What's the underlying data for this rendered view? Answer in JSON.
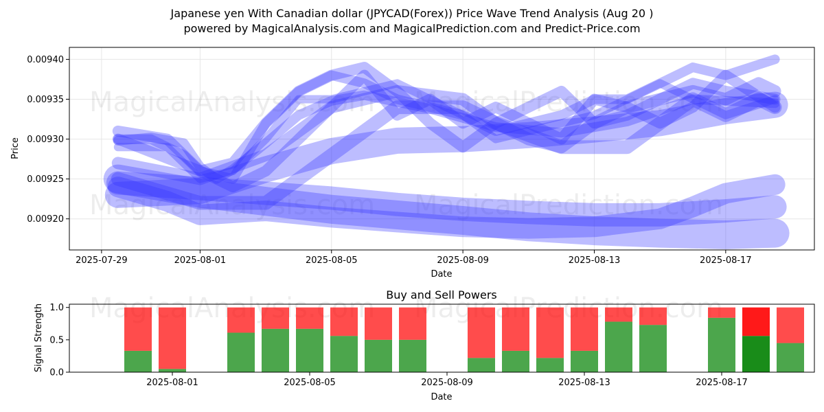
{
  "title": {
    "line1": "Japanese yen With Canadian dollar (JPYCAD(Forex)) Price Wave Trend Analysis (Aug 20 )",
    "line2": "powered by MagicalAnalysis.com and MagicalPrediction.com and Predict-Price.com"
  },
  "watermarks": [
    "MagicalAnalysis.com",
    "MagicalPrediction.com"
  ],
  "colors": {
    "wave": "#3333ff",
    "buy": "#008000",
    "sell": "#ff0000",
    "grid": "#e6e6e6"
  },
  "chart_data": [
    {
      "type": "line",
      "name": "price-wave-trend",
      "xlabel": "Date",
      "ylabel": "Price",
      "x_ticks": [
        "2025-07-29",
        "2025-08-01",
        "2025-08-05",
        "2025-08-09",
        "2025-08-13",
        "2025-08-17"
      ],
      "x_tick_days": [
        0,
        3,
        7,
        11,
        15,
        19
      ],
      "xlim_days": [
        -0.98,
        21.7
      ],
      "y_ticks": [
        "0.00920",
        "0.00925",
        "0.00930",
        "0.00935",
        "0.00940"
      ],
      "y_tick_values": [
        0.0092,
        0.00925,
        0.0093,
        0.00935,
        0.0094
      ],
      "ylim": [
        0.009161,
        0.009415
      ],
      "grid": true,
      "series": [
        {
          "name": "wave-1",
          "x": [
            0.5,
            1.5,
            2.5,
            3,
            3.5,
            4,
            5,
            6,
            7,
            8,
            10,
            12,
            14,
            16,
            18,
            20.5
          ],
          "y": [
            0.009298,
            0.009302,
            0.009295,
            0.009265,
            0.00925,
            0.009262,
            0.009295,
            0.00933,
            0.009348,
            0.009355,
            0.009338,
            0.009315,
            0.009308,
            0.009322,
            0.00935,
            0.009345
          ]
        },
        {
          "name": "wave-2",
          "x": [
            0.5,
            2,
            3,
            4,
            5,
            6,
            7,
            8,
            9,
            10,
            11,
            12,
            13,
            14,
            15,
            16,
            17,
            18,
            19,
            20.5
          ],
          "y": [
            0.00931,
            0.0093,
            0.00926,
            0.00924,
            0.00926,
            0.0093,
            0.00934,
            0.00938,
            0.00933,
            0.00935,
            0.00932,
            0.00934,
            0.00932,
            0.0093,
            0.00935,
            0.00934,
            0.00932,
            0.00934,
            0.00938,
            0.00934
          ]
        },
        {
          "name": "wave-3",
          "x": [
            0.5,
            2,
            3,
            4,
            5,
            6,
            7,
            8,
            9,
            10,
            11,
            12,
            13,
            14,
            15,
            16,
            17,
            18,
            19,
            20.5
          ],
          "y": [
            0.00929,
            0.00929,
            0.00925,
            0.00926,
            0.0093,
            0.00935,
            0.00935,
            0.00936,
            0.00937,
            0.00935,
            0.00933,
            0.0093,
            0.00931,
            0.00932,
            0.00933,
            0.00935,
            0.00937,
            0.00935,
            0.00933,
            0.00935
          ]
        },
        {
          "name": "wave-4",
          "x": [
            0.5,
            3,
            5,
            7,
            9,
            11,
            12,
            13,
            14,
            15,
            16,
            17,
            18,
            19,
            20,
            20.5
          ],
          "y": [
            0.00927,
            0.00925,
            0.00928,
            0.00934,
            0.00936,
            0.00935,
            0.00932,
            0.0093,
            0.00929,
            0.00932,
            0.00934,
            0.00935,
            0.00936,
            0.00935,
            0.00937,
            0.00936
          ]
        },
        {
          "name": "wave-5",
          "x": [
            0.5,
            3,
            5,
            7,
            9,
            11,
            12,
            14,
            16,
            17,
            18,
            19,
            20,
            20.5
          ],
          "y": [
            0.00925,
            0.00922,
            0.00922,
            0.00928,
            0.00934,
            0.00934,
            0.00932,
            0.00929,
            0.00929,
            0.00932,
            0.00935,
            0.00933,
            0.00935,
            0.00934
          ]
        },
        {
          "name": "wave-6",
          "x": [
            0.5,
            1.5,
            2.5,
            3,
            4,
            5,
            6,
            7,
            8,
            9,
            10,
            11,
            12,
            13,
            14,
            15,
            16,
            17,
            18,
            19,
            20.5
          ],
          "y": [
            0.0093,
            0.0093,
            0.00928,
            0.00926,
            0.00925,
            0.00932,
            0.00936,
            0.00938,
            0.00937,
            0.00935,
            0.00934,
            0.00933,
            0.00931,
            0.00932,
            0.00933,
            0.00935,
            0.00935,
            0.00937,
            0.00939,
            0.00938,
            0.0094
          ]
        },
        {
          "name": "wave-7",
          "x": [
            0.5,
            3,
            4,
            5,
            6,
            7,
            8,
            9,
            10,
            11,
            12,
            13,
            14,
            15,
            16,
            17,
            18,
            19,
            20.5
          ],
          "y": [
            0.0093,
            0.00926,
            0.00927,
            0.00932,
            0.00936,
            0.00938,
            0.00939,
            0.00936,
            0.00932,
            0.00929,
            0.00932,
            0.00934,
            0.00936,
            0.00932,
            0.00933,
            0.00935,
            0.00937,
            0.00936,
            0.00935
          ]
        },
        {
          "name": "trend-1",
          "x": [
            0.5,
            3,
            5,
            7,
            9,
            11,
            13,
            15,
            17,
            19,
            20.5
          ],
          "y": [
            0.009245,
            0.009238,
            0.009232,
            0.009226,
            0.009218,
            0.009212,
            0.009208,
            0.009205,
            0.009205,
            0.00921,
            0.009215
          ]
        },
        {
          "name": "trend-2",
          "x": [
            0.5,
            3,
            5,
            7,
            9,
            11,
            13,
            15,
            17,
            19,
            20.5
          ],
          "y": [
            0.00925,
            0.009232,
            0.009222,
            0.009212,
            0.009205,
            0.009198,
            0.00919,
            0.009185,
            0.009182,
            0.00918,
            0.009182
          ]
        },
        {
          "name": "trend-3",
          "x": [
            0.5,
            2,
            3,
            5,
            7,
            9,
            11,
            13,
            15,
            17,
            18,
            19,
            20.5
          ],
          "y": [
            0.00924,
            0.009222,
            0.009205,
            0.00921,
            0.009202,
            0.009196,
            0.00919,
            0.009188,
            0.00919,
            0.0092,
            0.009215,
            0.009232,
            0.009243
          ]
        },
        {
          "name": "trend-4",
          "x": [
            0.5,
            3,
            5,
            7,
            9,
            11,
            13,
            15,
            17,
            19,
            20.5
          ],
          "y": [
            0.00923,
            0.009235,
            0.009262,
            0.009285,
            0.009298,
            0.0093,
            0.009305,
            0.009312,
            0.00932,
            0.009335,
            0.009343
          ]
        }
      ]
    },
    {
      "type": "bar",
      "name": "buy-and-sell-powers",
      "title": "Buy and Sell Powers",
      "xlabel": "Date",
      "ylabel": "Signal Strength",
      "x_ticks": [
        "2025-08-01",
        "2025-08-05",
        "2025-08-09",
        "2025-08-13",
        "2025-08-17"
      ],
      "x_tick_days": [
        3,
        7,
        11,
        15,
        19
      ],
      "xlim_days": [
        0,
        21.7
      ],
      "y_ticks": [
        "0.0",
        "0.5",
        "1.0"
      ],
      "y_tick_values": [
        0,
        0.5,
        1.0
      ],
      "ylim": [
        0,
        1.05
      ],
      "days": [
        2,
        3,
        5,
        6,
        7,
        8,
        9,
        10,
        12,
        13,
        14,
        15,
        16,
        17,
        19,
        20,
        21
      ],
      "buy": [
        0.33,
        0.05,
        0.61,
        0.67,
        0.67,
        0.56,
        0.5,
        0.5,
        0.22,
        0.33,
        0.22,
        0.33,
        0.78,
        0.73,
        0.84,
        0.56,
        0.45
      ],
      "sell": [
        0.67,
        0.95,
        0.39,
        0.33,
        0.33,
        0.44,
        0.5,
        0.5,
        0.78,
        0.67,
        0.78,
        0.67,
        0.22,
        0.27,
        0.16,
        0.44,
        0.55
      ],
      "highlight_day": 20
    }
  ]
}
